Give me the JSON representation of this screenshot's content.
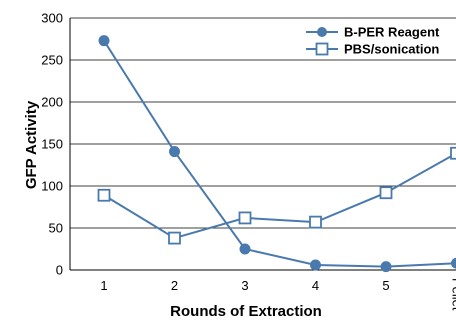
{
  "chart_data": {
    "type": "line",
    "title": "",
    "xlabel": "Rounds of Extraction",
    "ylabel": "GFP Activity",
    "categories": [
      "1",
      "2",
      "3",
      "4",
      "5",
      "Pellet"
    ],
    "ylim": [
      0,
      300
    ],
    "yticks": [
      0,
      50,
      100,
      150,
      200,
      250,
      300
    ],
    "grid": "horizontal",
    "legend": "top-right",
    "series": [
      {
        "name": "B-PER Reagent",
        "marker": "circle",
        "color": "#4a7aad",
        "values": [
          273,
          141,
          25,
          6,
          4,
          8
        ]
      },
      {
        "name": "PBS/sonication",
        "marker": "square-open",
        "color": "#4a7aad",
        "values": [
          89,
          38,
          62,
          57,
          92,
          139
        ]
      }
    ]
  }
}
